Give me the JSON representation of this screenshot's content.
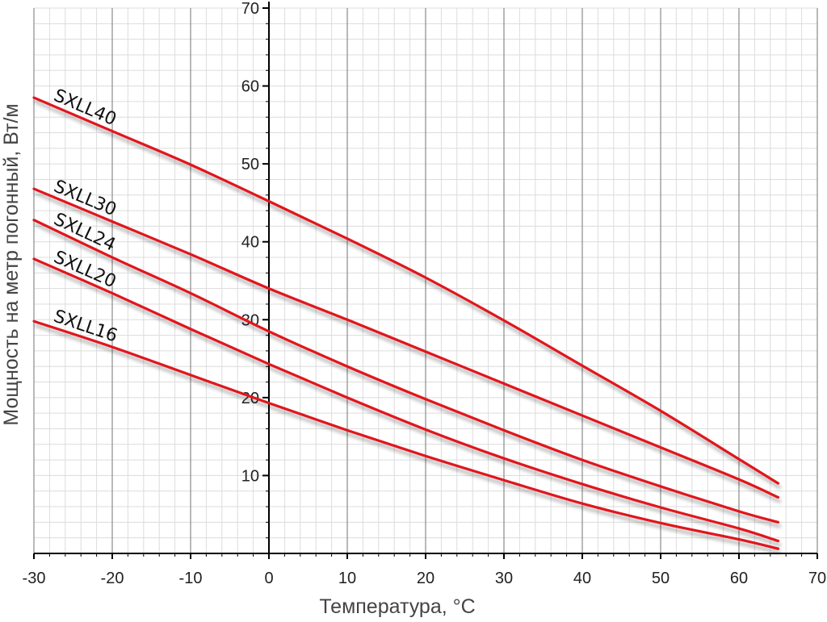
{
  "chart_data": {
    "type": "line",
    "title": "",
    "xlabel": "Температура, °С",
    "ylabel": "Мощность на метр погонный, Вт/м",
    "xlim": [
      -30,
      70
    ],
    "ylim": [
      0,
      70
    ],
    "x_ticks": [
      -30,
      -20,
      -10,
      0,
      10,
      20,
      30,
      40,
      50,
      60,
      70
    ],
    "y_ticks": [
      10,
      20,
      30,
      40,
      50,
      60,
      70
    ],
    "x_minor_step": 2,
    "y_minor_step": 2,
    "grid": true,
    "line_color": "#e0161f",
    "series": [
      {
        "name": "SXLL40",
        "x": [
          -30,
          -20,
          -10,
          0,
          10,
          20,
          30,
          40,
          50,
          60,
          65
        ],
        "values": [
          58.5,
          54.2,
          49.9,
          45.2,
          40.4,
          35.4,
          29.9,
          24.1,
          18.3,
          12.1,
          9.0
        ]
      },
      {
        "name": "SXLL30",
        "x": [
          -30,
          -20,
          -10,
          0,
          10,
          20,
          30,
          40,
          50,
          60,
          65
        ],
        "values": [
          46.8,
          42.6,
          38.4,
          34.0,
          30.0,
          25.9,
          21.8,
          17.7,
          13.6,
          9.5,
          7.2
        ]
      },
      {
        "name": "SXLL24",
        "x": [
          -30,
          -20,
          -10,
          0,
          10,
          20,
          30,
          40,
          50,
          60,
          65
        ],
        "values": [
          42.8,
          38.0,
          33.4,
          28.5,
          24.0,
          19.8,
          15.8,
          12.0,
          8.6,
          5.4,
          4.0
        ]
      },
      {
        "name": "SXLL20",
        "x": [
          -30,
          -20,
          -10,
          0,
          10,
          20,
          30,
          40,
          50,
          60,
          65
        ],
        "values": [
          37.8,
          33.4,
          28.8,
          24.3,
          20.0,
          15.9,
          12.2,
          8.9,
          5.9,
          3.2,
          1.6
        ]
      },
      {
        "name": "SXLL16",
        "x": [
          -30,
          -20,
          -10,
          0,
          10,
          20,
          30,
          40,
          50,
          60,
          65
        ],
        "values": [
          29.8,
          26.5,
          22.9,
          19.3,
          15.8,
          12.5,
          9.4,
          6.4,
          3.9,
          1.8,
          0.6
        ]
      }
    ]
  }
}
